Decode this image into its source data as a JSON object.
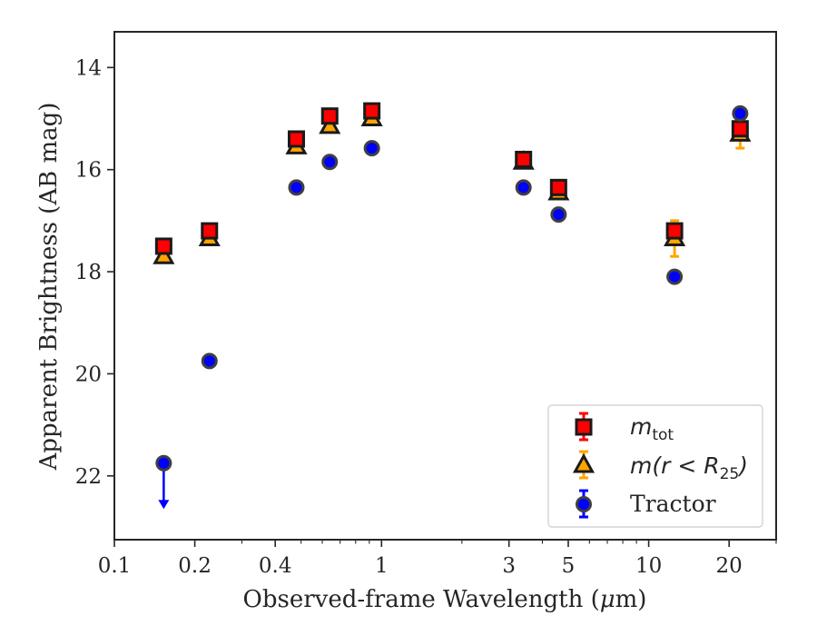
{
  "chart_data": {
    "type": "scatter",
    "xlabel_main": "Observed-frame Wavelength (",
    "xlabel_mu": "μ",
    "xlabel_end": "m)",
    "ylabel": "Apparent Brightness (AB mag)",
    "xscale": "log",
    "xlim": [
      0.1,
      30
    ],
    "ylim": [
      23.25,
      13.3
    ],
    "y_inverted": true,
    "x_ticks": [
      0.1,
      0.2,
      0.4,
      1,
      3,
      5,
      10,
      20
    ],
    "x_tick_labels": [
      "0.1",
      "0.2",
      "0.4",
      "1",
      "3",
      "5",
      "10",
      "20"
    ],
    "y_ticks": [
      14,
      16,
      18,
      20,
      22
    ],
    "y_tick_labels": [
      "14",
      "16",
      "18",
      "20",
      "22"
    ],
    "grid": false,
    "legend_position": "bottom-right",
    "series": [
      {
        "key": "mtot",
        "legend_main": "m",
        "legend_sub": "tot",
        "marker": "square",
        "color": "#ff0000",
        "edge_color": "#1a1a1a",
        "error_color": "#ff0000",
        "points": [
          {
            "x": 0.153,
            "y": 17.5,
            "err": 0.05
          },
          {
            "x": 0.227,
            "y": 17.2,
            "err": 0.05
          },
          {
            "x": 0.48,
            "y": 15.4,
            "err": 0.05
          },
          {
            "x": 0.64,
            "y": 14.95,
            "err": 0.05
          },
          {
            "x": 0.92,
            "y": 14.85,
            "err": 0.05
          },
          {
            "x": 3.4,
            "y": 15.8,
            "err": 0.05
          },
          {
            "x": 4.6,
            "y": 16.35,
            "err": 0.05
          },
          {
            "x": 12.5,
            "y": 17.2,
            "err": 0.08
          },
          {
            "x": 22.0,
            "y": 15.2,
            "err": 0.08
          }
        ]
      },
      {
        "key": "mr25",
        "legend_main": "m",
        "legend_expr": "(r < R",
        "legend_sub": "25",
        "legend_close": ")",
        "marker": "triangle",
        "color": "#ffa500",
        "edge_color": "#1a1a1a",
        "error_color": "#ffa500",
        "points": [
          {
            "x": 0.153,
            "y": 17.7,
            "err": 0.05
          },
          {
            "x": 0.227,
            "y": 17.35,
            "err": 0.05
          },
          {
            "x": 0.48,
            "y": 15.55,
            "err": 0.05
          },
          {
            "x": 0.64,
            "y": 15.15,
            "err": 0.05
          },
          {
            "x": 0.92,
            "y": 15.0,
            "err": 0.05
          },
          {
            "x": 3.4,
            "y": 15.85,
            "err": 0.05
          },
          {
            "x": 4.6,
            "y": 16.45,
            "err": 0.05
          },
          {
            "x": 12.5,
            "y": 17.35,
            "err": 0.35
          },
          {
            "x": 22.0,
            "y": 15.3,
            "err": 0.28
          }
        ]
      },
      {
        "key": "tractor",
        "legend_text": "Tractor",
        "marker": "circle",
        "color": "#0000ff",
        "edge_color": "#404040",
        "error_color": "#0000ff",
        "points": [
          {
            "x": 0.153,
            "y": 21.75,
            "err": 0,
            "upper_limit": true,
            "arrow_to": 22.65
          },
          {
            "x": 0.227,
            "y": 19.75,
            "err": 0.05
          },
          {
            "x": 0.48,
            "y": 16.35,
            "err": 0.05
          },
          {
            "x": 0.64,
            "y": 15.85,
            "err": 0.05
          },
          {
            "x": 0.92,
            "y": 15.58,
            "err": 0.05
          },
          {
            "x": 3.4,
            "y": 16.35,
            "err": 0.05
          },
          {
            "x": 4.6,
            "y": 16.88,
            "err": 0.05
          },
          {
            "x": 12.5,
            "y": 18.1,
            "err": 0.05
          },
          {
            "x": 22.0,
            "y": 14.9,
            "err": 0.05
          }
        ]
      }
    ]
  }
}
